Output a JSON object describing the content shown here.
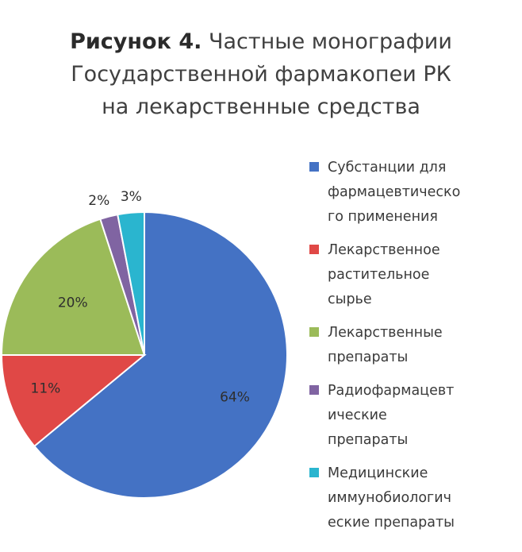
{
  "title": {
    "bold": "Рисунок 4.",
    "line1_rest": "Частные монографии",
    "line2": "Государственной фармакопеи РК",
    "line3": "на лекарственные средства"
  },
  "chart_data": {
    "type": "pie",
    "title": "Рисунок 4. Частные монографии Государственной фармакопеи РК на лекарственные средства",
    "unit": "%",
    "slices": [
      {
        "label": "Субстанции для фармацевтического применения",
        "legend_lines": [
          "Субстанции для",
          "фармацевтическо",
          "го применения"
        ],
        "value": 64,
        "display": "64%",
        "color": "#4472C4"
      },
      {
        "label": "Лекарственное растительное сырье",
        "legend_lines": [
          "Лекарственное",
          "растительное",
          "сырье"
        ],
        "value": 11,
        "display": "11%",
        "color": "#E04846"
      },
      {
        "label": "Лекарственные препараты",
        "legend_lines": [
          "Лекарственные",
          "препараты"
        ],
        "value": 20,
        "display": "20%",
        "color": "#9BBB59"
      },
      {
        "label": "Радиофармацевтические препараты",
        "legend_lines": [
          "Радиофармацевт",
          "ические",
          "препараты"
        ],
        "value": 2,
        "display": "2%",
        "color": "#8064A2"
      },
      {
        "label": "Медицинские иммунобиологические препараты",
        "legend_lines": [
          "Медицинские",
          "иммунобиологич",
          "еские препараты"
        ],
        "value": 3,
        "display": "3%",
        "color": "#2AB5CF"
      }
    ],
    "legend_position": "right"
  }
}
